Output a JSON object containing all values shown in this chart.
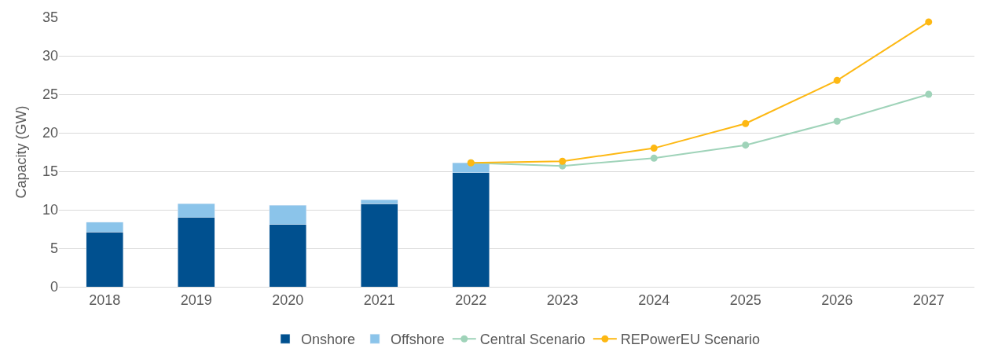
{
  "chart_data": {
    "type": "bar",
    "stacked": true,
    "ylabel": "Capacity (GW)",
    "categories": [
      "2018",
      "2019",
      "2020",
      "2021",
      "2022",
      "2023",
      "2024",
      "2025",
      "2026",
      "2027"
    ],
    "series": [
      {
        "name": "Onshore",
        "color": "#00508f",
        "values": [
          7.1,
          9.0,
          8.1,
          10.8,
          14.8,
          null,
          null,
          null,
          null,
          null
        ]
      },
      {
        "name": "Offshore",
        "color": "#8bc4ea",
        "values": [
          1.3,
          1.8,
          2.5,
          0.5,
          1.3,
          null,
          null,
          null,
          null,
          null
        ]
      },
      {
        "name": "Central Scenario",
        "type": "line",
        "marker": "circle",
        "color": "#9fd3b9",
        "values": [
          null,
          null,
          null,
          null,
          16.1,
          15.7,
          16.7,
          18.4,
          21.5,
          25.0
        ]
      },
      {
        "name": "REPowerEU Scenario",
        "type": "line",
        "marker": "circle",
        "color": "#fdb813",
        "values": [
          null,
          null,
          null,
          null,
          16.1,
          16.3,
          18.0,
          21.2,
          26.8,
          34.4
        ]
      }
    ],
    "ylim": [
      0,
      35
    ],
    "yticks": [
      0,
      5,
      10,
      15,
      20,
      25,
      30,
      35
    ],
    "grid": "y",
    "legend": "bottom"
  }
}
